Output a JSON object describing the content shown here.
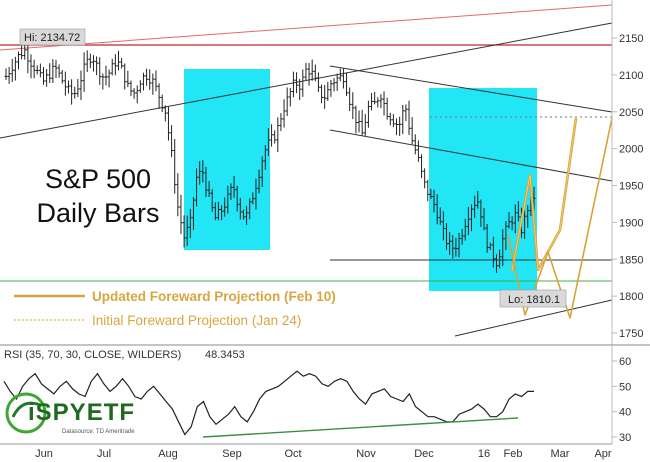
{
  "chart_data": [
    {
      "type": "ohlc",
      "title": "S&P 500",
      "subtitle": "Daily Bars",
      "x_tick_labels": [
        "Jun",
        "Jul",
        "Aug",
        "Sep",
        "Oct",
        "Nov",
        "Dec",
        "16",
        "Feb",
        "Mar",
        "Apr"
      ],
      "y_tick_labels": [
        1750,
        1800,
        1850,
        1900,
        1950,
        2000,
        2050,
        2100,
        2150
      ],
      "ylim": [
        1735,
        2195
      ],
      "hi_label": "Hi: 2134.72",
      "lo_label": "Lo: 1810.1",
      "hi_value": 2134.72,
      "lo_value": 1810.1,
      "series_close_path": [
        2098,
        2112,
        2125,
        2134,
        2118,
        2105,
        2090,
        2100,
        2110,
        2095,
        2080,
        2072,
        2090,
        2115,
        2127,
        2108,
        2095,
        2105,
        2120,
        2105,
        2080,
        2075,
        2095,
        2100,
        2090,
        2070,
        2050,
        1990,
        1920,
        1880,
        1898,
        1960,
        1970,
        1935,
        1905,
        1915,
        1930,
        1950,
        1920,
        1905,
        1930,
        1960,
        1995,
        2010,
        2020,
        2050,
        2070,
        2090,
        2085,
        2110,
        2100,
        2075,
        2070,
        2090,
        2095,
        2098,
        2065,
        2040,
        2020,
        2055,
        2060,
        2075,
        2050,
        2040,
        2030,
        2060,
        2015,
        1990,
        1955,
        1935,
        1920,
        1890,
        1870,
        1865,
        1880,
        1905,
        1925,
        1930,
        1880,
        1860,
        1845,
        1880,
        1900,
        1910,
        1890,
        1920,
        1935
      ],
      "annotations": [
        {
          "text": "Updated Foreward Projection (Feb 10)",
          "color": "#d8a640"
        },
        {
          "text": "Initial Foreward Projection (Jan 24)",
          "color": "#d8a640"
        }
      ],
      "highlight_color": "#22e5f5",
      "projection_color": "#d9a23a",
      "resistance_color": "#c0282a",
      "support_color": "#2ca02c"
    },
    {
      "type": "line",
      "title": "RSI (35, 70, 30, CLOSE, WILDERS)",
      "current_value": "48.3453",
      "y_tick_labels": [
        30,
        40,
        50,
        60
      ],
      "ylim": [
        28,
        66
      ],
      "values": [
        52,
        48,
        45,
        50,
        53,
        55,
        51,
        49,
        47,
        50,
        52,
        49,
        47,
        46,
        52,
        55,
        51,
        48,
        50,
        53,
        50,
        46,
        45,
        48,
        50,
        47,
        44,
        41,
        36,
        31,
        34,
        42,
        44,
        38,
        35,
        37,
        39,
        42,
        38,
        36,
        40,
        45,
        48,
        49,
        50,
        52,
        54,
        56,
        54,
        55,
        54,
        51,
        50,
        52,
        53,
        52,
        48,
        45,
        43,
        47,
        48,
        49,
        46,
        45,
        44,
        47,
        42,
        40,
        38,
        38,
        37,
        36,
        36,
        39,
        40,
        41,
        43,
        41,
        38,
        38,
        40,
        45,
        47,
        46,
        48,
        48
      ],
      "line_color": "#222222",
      "trendline_color": "#3f8f3f"
    }
  ],
  "logo": {
    "brand": "iSPYETF",
    "source_text": "Datasource: TD Ameritrade"
  }
}
